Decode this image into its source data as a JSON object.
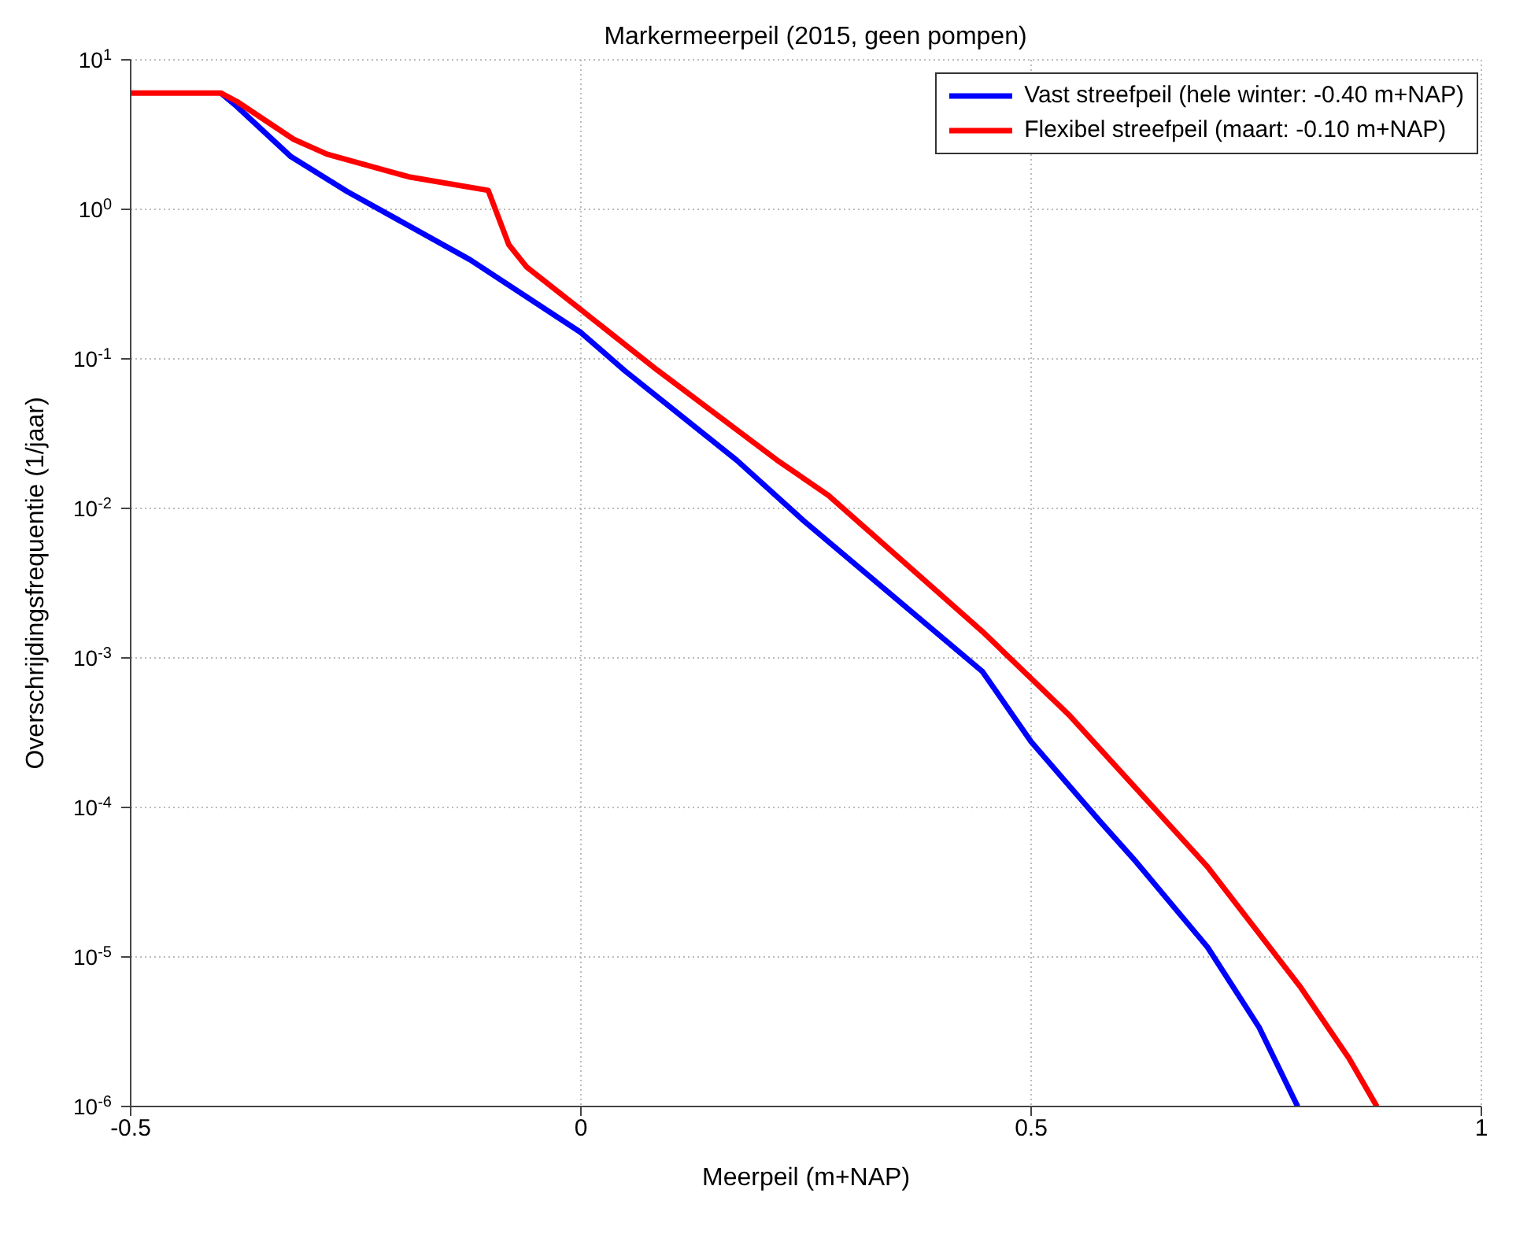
{
  "chart_data": {
    "type": "line",
    "title": "Markermeerpeil (2015, geen pompen)",
    "xlabel": "Meerpeil (m+NAP)",
    "ylabel": "Overschrijdingsfrequentie (1/jaar)",
    "log": "y",
    "grid": true,
    "legend": "top right",
    "marker": "none",
    "line_style": "solid",
    "xlim": [
      -0.5,
      1
    ],
    "xticks": [
      -0.5,
      0,
      0.5,
      1
    ],
    "ylim": [
      1e-06,
      10
    ],
    "yticks": [
      {
        "value": 1e-06,
        "label": "10$^{-6}$"
      },
      {
        "value": 1e-05,
        "label": "10$^{-5}$"
      },
      {
        "value": 0.0001,
        "label": "10$^{-4}$"
      },
      {
        "value": 0.001,
        "label": "10$^{-3}$"
      },
      {
        "value": 0.01,
        "label": "10$^{-2}$"
      },
      {
        "value": 0.1,
        "label": "10$^{-1}$"
      },
      {
        "value": 1,
        "label": "10$^{0}$"
      },
      {
        "value": 10,
        "label": "10$^{1}$"
      }
    ],
    "series": [
      {
        "name": "Vast streefpeil (hele winter: -0.40 m+NAP)",
        "color": "#0000ff",
        "x": [
          -0.4,
          -0.382,
          -0.322,
          -0.259,
          -0.123,
          0,
          0.048,
          0.173,
          0.247,
          0.446,
          0.5,
          0.577,
          0.617,
          0.696,
          0.753,
          0.796
        ],
        "values": [
          6.0,
          4.87,
          2.25,
          1.31,
          0.46,
          0.15,
          0.084,
          0.021,
          0.0083,
          0.00081,
          0.000275,
          8e-05,
          4.3e-05,
          1.16e-05,
          3.4e-06,
          1e-06
        ]
      },
      {
        "name": "Flexibel streefpeil (maart: -0.10 m+NAP)",
        "color": "#ff0000",
        "x": [
          -0.5,
          -0.4,
          -0.382,
          -0.319,
          -0.282,
          -0.191,
          -0.103,
          -0.08,
          -0.06,
          0,
          0.085,
          0.218,
          0.275,
          0.446,
          0.543,
          0.645,
          0.696,
          0.799,
          0.853,
          0.884
        ],
        "values": [
          6.0,
          6.0,
          5.26,
          2.94,
          2.34,
          1.65,
          1.34,
          0.58,
          0.41,
          0.213,
          0.084,
          0.021,
          0.0122,
          0.0015,
          0.00041,
          8.7e-05,
          4e-05,
          6.3e-06,
          2.1e-06,
          1e-06
        ]
      }
    ]
  }
}
